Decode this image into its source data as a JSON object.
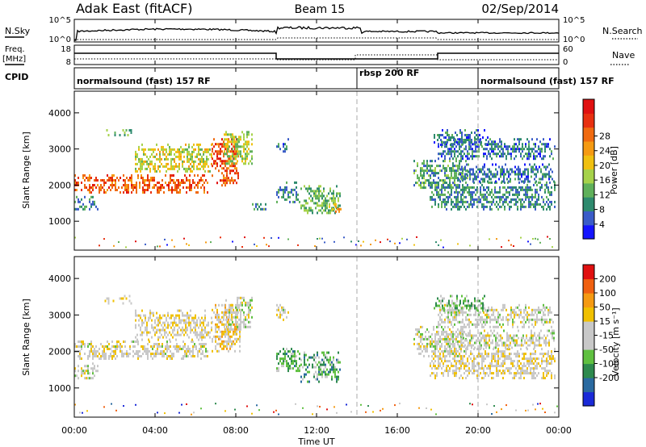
{
  "header": {
    "station": "Adak East (fitACF)",
    "beam": "Beam 15",
    "date": "02/Sep/2014"
  },
  "panels": {
    "nsky": {
      "label_left": "N.Sky",
      "ticks_left": [
        "10^5",
        "10^0"
      ],
      "label_right": "N.Search",
      "ticks_right": [
        "10^5",
        "10^0"
      ]
    },
    "freq": {
      "label_left_1": "Freq.",
      "label_left_2": "[MHz]",
      "ticks_left": [
        "18",
        "8"
      ],
      "label_right": "Nave",
      "ticks_right": [
        "60",
        "0"
      ]
    },
    "cpid": {
      "label": "CPID",
      "segments": [
        {
          "text": "normalsound (fast) 157 RF",
          "start_h": 0,
          "end_h": 14
        },
        {
          "text": "rbsp 200 RF",
          "start_h": 14,
          "end_h": 20
        },
        {
          "text": "normalsound (fast) 157 RF",
          "start_h": 20,
          "end_h": 24
        }
      ]
    }
  },
  "chart_data": [
    {
      "type": "heatmap",
      "name": "Power",
      "ylabel": "Slant Range [km]",
      "yticks": [
        1000,
        2000,
        3000,
        4000
      ],
      "ylim": [
        200,
        4600
      ],
      "colorbar_label": "Power [dB]",
      "colorbar_ticks": [
        "4",
        "8",
        "12",
        "16",
        "20",
        "24",
        "28"
      ],
      "colorbar_colors": [
        "#1414ff",
        "#3a5cc8",
        "#2e8a6e",
        "#5fb05a",
        "#a6d24a",
        "#f0c010",
        "#f59a12",
        "#f06a10",
        "#e83010",
        "#e01010"
      ],
      "bands": [
        {
          "x0": 0.0,
          "x1": 1.2,
          "y0": 1300,
          "y1": 1700,
          "level": 0.25
        },
        {
          "x0": 0.0,
          "x1": 6.6,
          "y0": 1800,
          "y1": 2300,
          "level": 0.78
        },
        {
          "x0": 1.5,
          "x1": 2.8,
          "y0": 3350,
          "y1": 3550,
          "level": 0.35
        },
        {
          "x0": 3.0,
          "x1": 6.8,
          "y0": 2350,
          "y1": 3150,
          "level": 0.5
        },
        {
          "x0": 6.8,
          "x1": 8.2,
          "y0": 2000,
          "y1": 3300,
          "level": 0.8
        },
        {
          "x0": 7.4,
          "x1": 8.8,
          "y0": 2600,
          "y1": 3500,
          "level": 0.45
        },
        {
          "x0": 10.0,
          "x1": 10.6,
          "y0": 2900,
          "y1": 3300,
          "level": 0.2
        },
        {
          "x0": 8.8,
          "x1": 9.6,
          "y0": 1300,
          "y1": 1500,
          "level": 0.3
        },
        {
          "x0": 10.0,
          "x1": 11.2,
          "y0": 1500,
          "y1": 2100,
          "level": 0.25
        },
        {
          "x0": 11.2,
          "x1": 13.2,
          "y0": 1200,
          "y1": 2000,
          "level": 0.35
        },
        {
          "x0": 12.6,
          "x1": 13.3,
          "y0": 1250,
          "y1": 1500,
          "level": 0.6
        },
        {
          "x0": 16.8,
          "x1": 19.5,
          "y0": 1900,
          "y1": 2700,
          "level": 0.3
        },
        {
          "x0": 17.6,
          "x1": 23.8,
          "y0": 1300,
          "y1": 2100,
          "level": 0.25
        },
        {
          "x0": 19.0,
          "x1": 23.8,
          "y0": 2100,
          "y1": 2600,
          "level": 0.2
        },
        {
          "x0": 18.0,
          "x1": 23.8,
          "y0": 2700,
          "y1": 3300,
          "level": 0.2
        },
        {
          "x0": 17.8,
          "x1": 20.5,
          "y0": 3100,
          "y1": 3550,
          "level": 0.2
        }
      ],
      "vertical_dashes_h": [
        14,
        20
      ]
    },
    {
      "type": "heatmap",
      "name": "Velocity",
      "ylabel": "Slant Range [km]",
      "yticks": [
        1000,
        2000,
        3000,
        4000
      ],
      "ylim": [
        200,
        4600
      ],
      "colorbar_label": "Velocity [m s⁻¹]",
      "colorbar_ticks": [
        "200",
        "100",
        "50",
        "15",
        "-15",
        "-50",
        "-100",
        "-200"
      ],
      "colorbar_colors": [
        "#1a2ad8",
        "#2a6aa0",
        "#2e8a4e",
        "#5fc040",
        "#c8c8c8",
        "#c8c8c8",
        "#f0c000",
        "#f59a12",
        "#f06010",
        "#e01010"
      ],
      "bands": [
        {
          "x0": 0.0,
          "x1": 1.2,
          "y0": 1300,
          "y1": 1700,
          "level": 0.5
        },
        {
          "x0": 0.0,
          "x1": 6.6,
          "y0": 1800,
          "y1": 2300,
          "level": 0.52
        },
        {
          "x0": 1.5,
          "x1": 2.8,
          "y0": 3350,
          "y1": 3550,
          "level": 0.55
        },
        {
          "x0": 3.0,
          "x1": 6.8,
          "y0": 2350,
          "y1": 3150,
          "level": 0.55
        },
        {
          "x0": 6.8,
          "x1": 8.2,
          "y0": 2000,
          "y1": 3300,
          "level": 0.62
        },
        {
          "x0": 7.4,
          "x1": 8.8,
          "y0": 2600,
          "y1": 3500,
          "level": 0.5
        },
        {
          "x0": 10.0,
          "x1": 10.6,
          "y0": 2900,
          "y1": 3300,
          "level": 0.5
        },
        {
          "x0": 10.0,
          "x1": 11.2,
          "y0": 1500,
          "y1": 2100,
          "level": 0.33
        },
        {
          "x0": 11.2,
          "x1": 13.2,
          "y0": 1200,
          "y1": 2000,
          "level": 0.3
        },
        {
          "x0": 16.8,
          "x1": 19.5,
          "y0": 1900,
          "y1": 2700,
          "level": 0.5
        },
        {
          "x0": 17.6,
          "x1": 23.8,
          "y0": 1300,
          "y1": 2100,
          "level": 0.55
        },
        {
          "x0": 19.0,
          "x1": 23.8,
          "y0": 2100,
          "y1": 2600,
          "level": 0.5
        },
        {
          "x0": 18.0,
          "x1": 23.8,
          "y0": 2700,
          "y1": 3300,
          "level": 0.5
        },
        {
          "x0": 17.8,
          "x1": 20.5,
          "y0": 3100,
          "y1": 3550,
          "level": 0.35
        }
      ],
      "vertical_dashes_h": [
        14,
        20
      ]
    }
  ],
  "xaxis": {
    "label": "Time UT",
    "xlim": [
      0,
      24
    ],
    "ticks": [
      {
        "h": 0,
        "label": "00:00"
      },
      {
        "h": 4,
        "label": "04:00"
      },
      {
        "h": 8,
        "label": "08:00"
      },
      {
        "h": 12,
        "label": "12:00"
      },
      {
        "h": 16,
        "label": "16:00"
      },
      {
        "h": 20,
        "label": "20:00"
      },
      {
        "h": 24,
        "label": "00:00"
      }
    ]
  }
}
